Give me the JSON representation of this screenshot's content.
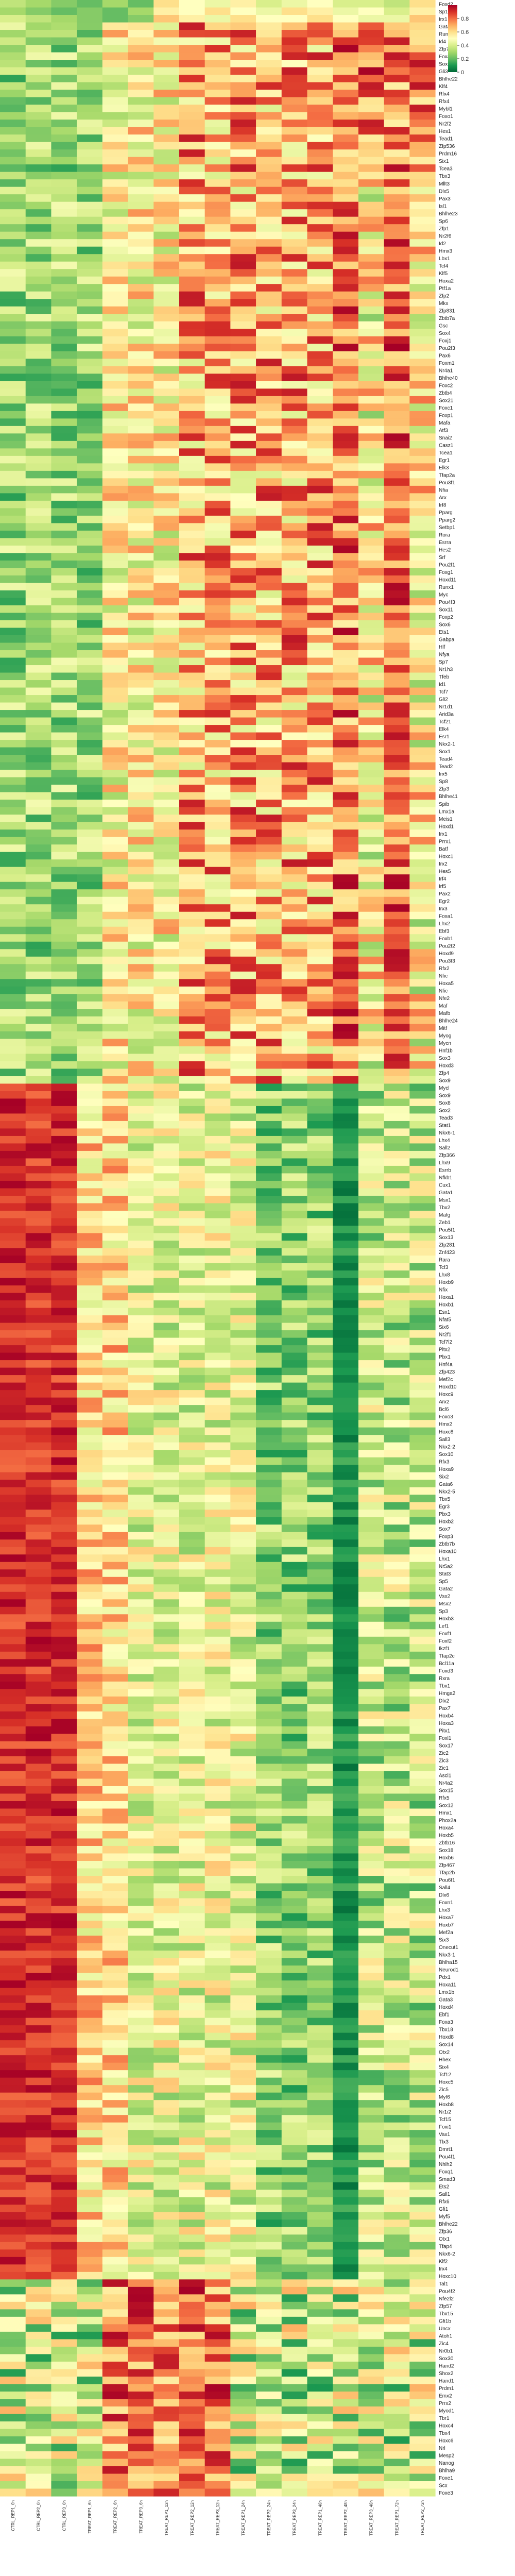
{
  "chart_data": {
    "type": "heatmap",
    "title": "",
    "xlabel": "",
    "ylabel": "",
    "colormap": "RdYlGn_r",
    "color_stops": [
      "#006837",
      "#1a9850",
      "#66bd63",
      "#a6d96a",
      "#d9ef8b",
      "#ffffbf",
      "#fee08b",
      "#fdae61",
      "#f46d43",
      "#d73027",
      "#a50026"
    ],
    "value_range": [
      0.0,
      1.0
    ],
    "colorbar_ticks": [
      "0.8",
      "0.6",
      "0.4",
      "0.2",
      "0"
    ],
    "colorbar_tick_values": [
      0.8,
      0.6,
      0.4,
      0.2,
      0.0
    ],
    "column_labels": [
      "CTRL_REP1_0h",
      "CTRL_REP2_0h",
      "CTRL_REP3_0h",
      "TREAT_REP1_6h",
      "TREAT_REP2_6h",
      "TREAT_REP3_6h",
      "TREAT_REP1_12h",
      "TREAT_REP2_12h",
      "TREAT_REP3_12h",
      "TREAT_REP1_24h",
      "TREAT_REP2_24h",
      "TREAT_REP3_24h",
      "TREAT_REP1_48h",
      "TREAT_REP2_48h",
      "TREAT_REP3_48h",
      "TREAT_REP1_72h",
      "TREAT_REP2_72h"
    ],
    "row_labels": [
      "Foxd2",
      "Sp1",
      "Irx1",
      "Gata4",
      "Runx2",
      "Id4",
      "Zfp706",
      "Foxa2",
      "Sox5",
      "Gli3",
      "Bhlhe22",
      "Klf4",
      "Rfx4",
      "Rfx4",
      "Mybl1",
      "Foxo1",
      "Nr2f2",
      "Hes1",
      "Tead1",
      "Zfp536",
      "Prdm16",
      "Six1",
      "Tcea3",
      "Tbx3",
      "Mllt3",
      "Dlx5",
      "Pax3",
      "Isl1",
      "Bhlhe23",
      "Sp6",
      "Zfp1",
      "Nr2f6",
      "Id2",
      "Hmx3",
      "Lbx1",
      "Tcf4",
      "Klf5",
      "Hoxa2",
      "Ptf1a",
      "Zfp2",
      "Mkx",
      "Zfp831",
      "Zbtb7a",
      "Gsc",
      "Sox4",
      "Foxj1",
      "Pou2f3",
      "Pax6",
      "Foxm1",
      "Nr4a1",
      "Bhlhe40",
      "Foxc2",
      "Zbtb4",
      "Sox21",
      "Foxc1",
      "Foxp1",
      "Mafa",
      "Atf3",
      "Snai2",
      "Casz1",
      "Tcea1",
      "Egr1",
      "Elk3",
      "Tfap2a",
      "Pou3f1",
      "Nfia",
      "Arx",
      "Irf8",
      "Pparg",
      "Pparg2",
      "Setbp1",
      "Rora",
      "Esrra",
      "Hes2",
      "Srf",
      "Pou2f1",
      "Foxg1",
      "Hoxd11",
      "Runx1",
      "Myc",
      "Pou4f3",
      "Sox11",
      "Foxp2",
      "Sox6",
      "Ets1",
      "Gabpa",
      "Hlf",
      "Nfya",
      "Sp7",
      "Nr1h3",
      "Tfeb",
      "Id1",
      "Tcf7",
      "Gli2",
      "Nr1d1",
      "Arid3a",
      "Tcf21",
      "Elk4",
      "Esr1",
      "Nkx2-1",
      "Sox1",
      "Tead4",
      "Tead2",
      "Irx5",
      "Sp8",
      "Zfp3",
      "Bhlhe41",
      "Spib",
      "Lmx1a",
      "Meis1",
      "Hoxd1",
      "Irx1",
      "Prrx1",
      "Batf",
      "Hoxc1",
      "Irx2",
      "Hes5",
      "Irf4",
      "Irf5",
      "Pax2",
      "Egr2",
      "Irx3",
      "Foxa1",
      "Lhx2",
      "Ebf3",
      "Foxb1",
      "Pou2f2",
      "Hoxd9",
      "Pou3f3",
      "Rfx2",
      "Nfic",
      "Hoxa5",
      "Nfic",
      "Nfe2",
      "Maf",
      "Mafb",
      "Bhlhe24",
      "Mitf",
      "Myog",
      "Mycn",
      "Hnf1b",
      "Sox3",
      "Hoxd3",
      "Zfp4",
      "Sox9",
      "Mycl",
      "Sox9",
      "Sox8",
      "Sox2",
      "Tead3",
      "Stat1",
      "Nkx6-1",
      "Lhx4",
      "Sall2",
      "Zfp366",
      "Lhx9",
      "Esrrb",
      "Nfkb1",
      "Cux1",
      "Gata1",
      "Msx1",
      "Tbx2",
      "Mafg",
      "Zeb1",
      "Pou5f1",
      "Sox13",
      "Zfp281",
      "Znf423",
      "Rara",
      "Tcf3",
      "Lhx8",
      "Hoxb9",
      "Nfix",
      "Hoxa1",
      "Hoxb1",
      "Esx1",
      "Nfat5",
      "Six6",
      "Nr2f1",
      "Tcf7l2",
      "Pitx2",
      "Pbx1",
      "Hnf4a",
      "Zfp423",
      "Mef2c",
      "Hoxd10",
      "Hoxc9",
      "Arx2",
      "Bcl6",
      "Foxo3",
      "Hmx2",
      "Hoxc8",
      "Sall3",
      "Nkx2-2",
      "Sox10",
      "Rfx3",
      "Hoxa9",
      "Six2",
      "Gata6",
      "Nkx2-5",
      "Tbx5",
      "Egr3",
      "Pbx3",
      "Hoxb2",
      "Sox7",
      "Foxp3",
      "Zbtb7b",
      "Hoxa10",
      "Lhx1",
      "Nr5a2",
      "Stat3",
      "Sp5",
      "Gata2",
      "Vsx2",
      "Msx2",
      "Sp3",
      "Hoxb3",
      "Lef1",
      "Foxf1",
      "Foxf2",
      "Ikzf1",
      "Tfap2c",
      "Bcl11a",
      "Foxd3",
      "Rxra",
      "Tbx1",
      "Hmga2",
      "Dlx2",
      "Pax7",
      "Hoxb4",
      "Hoxa3",
      "Pitx1",
      "Foxl1",
      "Sox17",
      "Zic2",
      "Zic3",
      "Zic1",
      "Ascl1",
      "Nr4a2",
      "Sox15",
      "Rfx5",
      "Sox12",
      "Hmx1",
      "Phox2a",
      "Hoxa4",
      "Hoxb5",
      "Zbtb16",
      "Sox18",
      "Hoxb6",
      "Zfp467",
      "Tfap2b",
      "Pou6f1",
      "Sall4",
      "Dlx6",
      "Foxn1",
      "Lhx3",
      "Hoxa7",
      "Hoxb7",
      "Mef2a",
      "Six3",
      "Onecut1",
      "Nkx3-1",
      "Bhlha15",
      "Neurod1",
      "Pdx1",
      "Hoxa11",
      "Lmx1b",
      "Gata3",
      "Hoxd4",
      "Ebf1",
      "Foxa3",
      "Tbx18",
      "Hoxd8",
      "Sox14",
      "Otx2",
      "Hhex",
      "Six4",
      "Tcf12",
      "Hoxc5",
      "Zic5",
      "Myf6",
      "Hoxb8",
      "Nr1i2",
      "Tcf15",
      "Foxi1",
      "Vax1",
      "Tlx3",
      "Dmrt1",
      "Pou4f1",
      "Nhlh2",
      "Foxq1",
      "Smad3",
      "Ets2",
      "Sall1",
      "Rfx6",
      "Gfi1",
      "Myf5",
      "Bhlhe22",
      "Zfp36",
      "Otx1",
      "Tfap4",
      "Nkx6-2",
      "Klf2",
      "Irx4",
      "Hoxc10",
      "Tal1",
      "Pou4f2",
      "Nfe2l2",
      "Zfp57",
      "Tbx15",
      "Gfi1b",
      "Uncx",
      "Atoh1",
      "Zic4",
      "Nr0b1",
      "Sox30",
      "Hand2",
      "Shox2",
      "Hand1",
      "Prdm1",
      "Emx2",
      "Prrx2",
      "Myod1",
      "Tbr1",
      "Hoxc4",
      "Tbx4",
      "Hoxc6",
      "Nrl",
      "Mesp2",
      "Nanog",
      "Bhlha9",
      "Foxe1",
      "Scx",
      "Foxe3"
    ],
    "cells": [
      [
        0.35,
        0.3,
        0.25,
        0.2,
        0.3,
        0.2,
        0.6,
        0.5,
        0.45,
        0.55,
        0.4,
        0.45,
        0.5,
        0.4,
        0.4,
        0.35,
        0.6
      ],
      [
        0.3,
        0.25,
        0.2,
        0.25,
        0.2,
        0.3,
        0.55,
        0.5,
        0.6,
        0.5,
        0.45,
        0.6,
        0.55,
        0.45,
        0.5,
        0.4,
        0.55
      ],
      [
        0.4,
        0.35,
        0.3,
        0.25,
        0.2,
        0.25,
        0.65,
        0.55,
        0.45,
        0.6,
        0.5,
        0.5,
        0.6,
        0.5,
        0.45,
        0.45,
        0.65
      ]
    ],
    "notes": "17 columns; the full image shows ~390 rows with upper block (rows ~1-170) high in mid columns and lower block (rows ~170-390) high in the first three columns; see rendering script for representative values."
  }
}
